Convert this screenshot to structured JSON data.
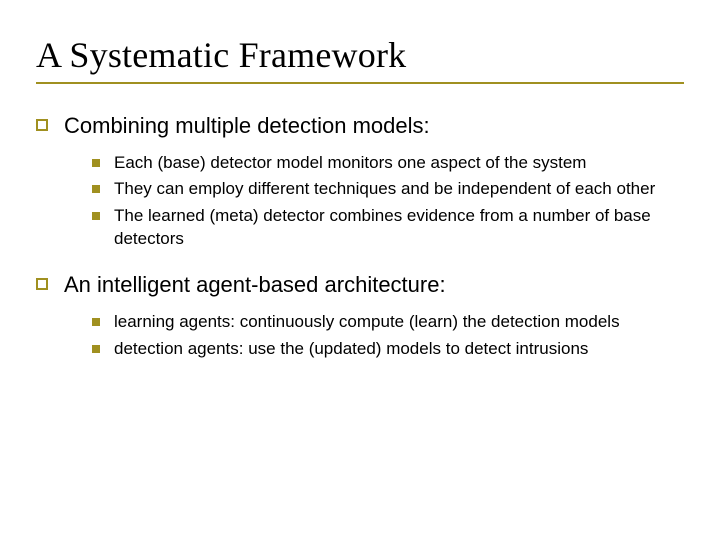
{
  "colors": {
    "accent": "#a09020",
    "text": "#000000",
    "background": "#ffffff"
  },
  "title": "A Systematic Framework",
  "sections": [
    {
      "heading": "Combining multiple detection models:",
      "items": [
        "Each (base) detector model monitors one aspect of the system",
        "They can employ different techniques and be independent of each other",
        "The learned (meta) detector combines evidence from a number of base detectors"
      ]
    },
    {
      "heading": "An intelligent agent-based architecture:",
      "items": [
        "learning agents: continuously compute (learn) the detection models",
        "detection agents: use the (updated) models to detect intrusions"
      ]
    }
  ]
}
